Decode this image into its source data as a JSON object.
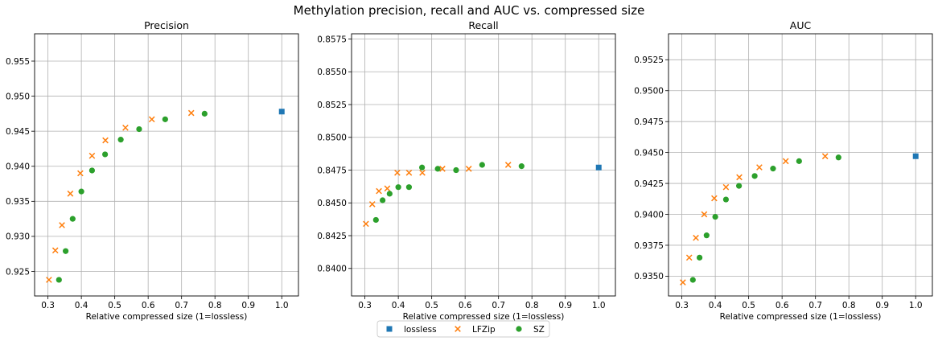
{
  "figure": {
    "title": "Methylation precision, recall and AUC vs. compressed size"
  },
  "legend": {
    "placement": "bottom-center",
    "entries": [
      {
        "label": "lossless",
        "marker": "square",
        "color": "#1f77b4"
      },
      {
        "label": "LFZip",
        "marker": "x",
        "color": "#ff7f0e"
      },
      {
        "label": "SZ",
        "marker": "circle",
        "color": "#2ca02c"
      }
    ]
  },
  "chart_data": [
    {
      "type": "scatter",
      "title": "Precision",
      "xlabel": "Relative compressed size (1=lossless)",
      "ylabel": "",
      "xlim": [
        0.26,
        1.05
      ],
      "ylim": [
        0.9215,
        0.9589
      ],
      "xticks": [
        "0.3",
        "0.4",
        "0.5",
        "0.6",
        "0.7",
        "0.8",
        "0.9",
        "1.0"
      ],
      "yticks": [
        "0.925",
        "0.930",
        "0.935",
        "0.940",
        "0.945",
        "0.950",
        "0.955"
      ],
      "grid": true,
      "series": [
        {
          "name": "lossless",
          "marker": "square",
          "color": "#1f77b4",
          "x": [
            1.0
          ],
          "y": [
            0.9478
          ]
        },
        {
          "name": "LFZip",
          "marker": "x",
          "color": "#ff7f0e",
          "x": [
            0.303,
            0.322,
            0.342,
            0.367,
            0.397,
            0.432,
            0.472,
            0.532,
            0.611,
            0.729
          ],
          "y": [
            0.9238,
            0.928,
            0.9316,
            0.9361,
            0.939,
            0.9415,
            0.9437,
            0.9455,
            0.9467,
            0.9476
          ]
        },
        {
          "name": "SZ",
          "marker": "circle",
          "color": "#2ca02c",
          "x": [
            0.333,
            0.353,
            0.374,
            0.4,
            0.432,
            0.471,
            0.518,
            0.573,
            0.651,
            0.769
          ],
          "y": [
            0.9238,
            0.9279,
            0.9325,
            0.9364,
            0.9394,
            0.9417,
            0.9438,
            0.9453,
            0.9467,
            0.9475
          ]
        }
      ]
    },
    {
      "type": "scatter",
      "title": "Recall",
      "xlabel": "Relative compressed size (1=lossless)",
      "ylabel": "",
      "xlim": [
        0.26,
        1.05
      ],
      "ylim": [
        0.8379,
        0.8579
      ],
      "xticks": [
        "0.3",
        "0.4",
        "0.5",
        "0.6",
        "0.7",
        "0.8",
        "0.9",
        "1.0"
      ],
      "yticks": [
        "0.8400",
        "0.8425",
        "0.8450",
        "0.8475",
        "0.8500",
        "0.8525",
        "0.8550",
        "0.8575"
      ],
      "grid": true,
      "series": [
        {
          "name": "lossless",
          "marker": "square",
          "color": "#1f77b4",
          "x": [
            1.0
          ],
          "y": [
            0.8477
          ]
        },
        {
          "name": "LFZip",
          "marker": "x",
          "color": "#ff7f0e",
          "x": [
            0.303,
            0.322,
            0.342,
            0.367,
            0.397,
            0.432,
            0.472,
            0.532,
            0.611,
            0.729
          ],
          "y": [
            0.8434,
            0.8449,
            0.8459,
            0.8461,
            0.8473,
            0.8473,
            0.8473,
            0.8476,
            0.8476,
            0.8479
          ]
        },
        {
          "name": "SZ",
          "marker": "circle",
          "color": "#2ca02c",
          "x": [
            0.333,
            0.353,
            0.374,
            0.4,
            0.432,
            0.471,
            0.518,
            0.573,
            0.651,
            0.769
          ],
          "y": [
            0.8437,
            0.8452,
            0.8457,
            0.8462,
            0.8462,
            0.8477,
            0.8476,
            0.8475,
            0.8479,
            0.8478
          ]
        }
      ]
    },
    {
      "type": "scatter",
      "title": "AUC",
      "xlabel": "Relative compressed size (1=lossless)",
      "ylabel": "",
      "xlim": [
        0.26,
        1.05
      ],
      "ylim": [
        0.9334,
        0.9546
      ],
      "xticks": [
        "0.3",
        "0.4",
        "0.5",
        "0.6",
        "0.7",
        "0.8",
        "0.9",
        "1.0"
      ],
      "yticks": [
        "0.9350",
        "0.9375",
        "0.9400",
        "0.9425",
        "0.9450",
        "0.9475",
        "0.9500",
        "0.9525"
      ],
      "grid": true,
      "series": [
        {
          "name": "lossless",
          "marker": "square",
          "color": "#1f77b4",
          "x": [
            1.0
          ],
          "y": [
            0.9447
          ]
        },
        {
          "name": "LFZip",
          "marker": "x",
          "color": "#ff7f0e",
          "x": [
            0.303,
            0.322,
            0.342,
            0.367,
            0.397,
            0.432,
            0.472,
            0.532,
            0.611,
            0.729
          ],
          "y": [
            0.9345,
            0.9365,
            0.9381,
            0.94,
            0.9413,
            0.9422,
            0.943,
            0.9438,
            0.9443,
            0.9447
          ]
        },
        {
          "name": "SZ",
          "marker": "circle",
          "color": "#2ca02c",
          "x": [
            0.333,
            0.353,
            0.374,
            0.4,
            0.432,
            0.471,
            0.518,
            0.573,
            0.651,
            0.769
          ],
          "y": [
            0.9347,
            0.9365,
            0.9383,
            0.9398,
            0.9412,
            0.9423,
            0.9431,
            0.9437,
            0.9443,
            0.9446
          ]
        }
      ]
    }
  ]
}
